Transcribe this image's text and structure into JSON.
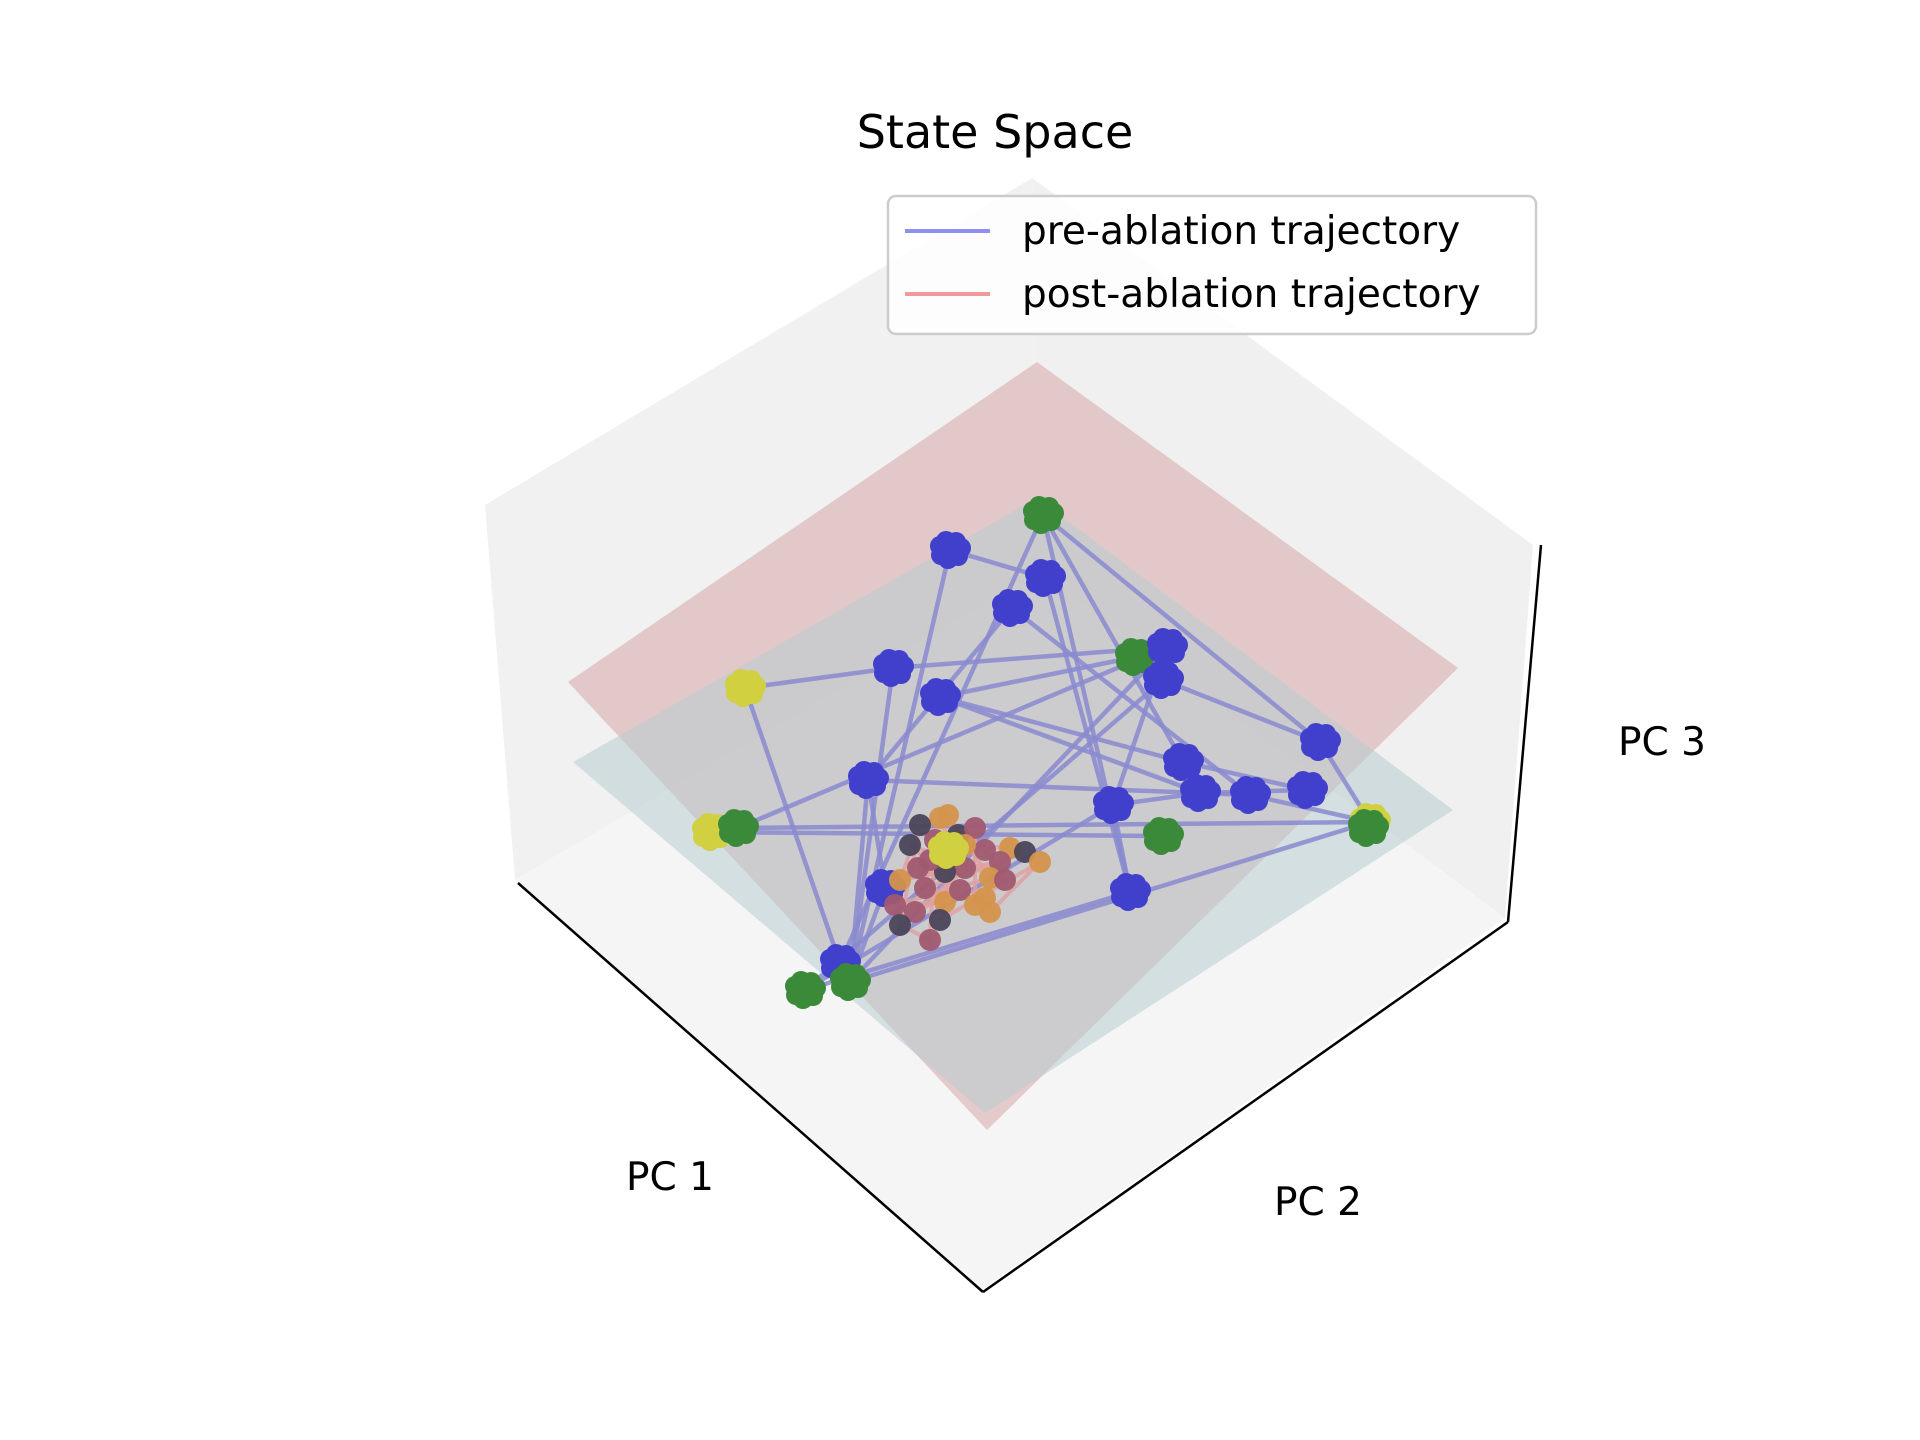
{
  "chart_data": {
    "type": "scatter",
    "projection": "3d",
    "title": "State Space",
    "axes": {
      "xlabel": "PC 1",
      "ylabel": "PC 2",
      "zlabel": "PC 3",
      "ticks_visible": false,
      "grid": false
    },
    "legend": {
      "placement": "top-right",
      "entries": [
        {
          "label": "pre-ablation trajectory",
          "color": "#8f8ff2"
        },
        {
          "label": "post-ablation trajectory",
          "color": "#f29a9a"
        }
      ]
    },
    "colors": {
      "pre_line": "#8a8ad0",
      "post_line": "#e0a0a0",
      "pre_state": "#4040cc",
      "goal_state": "#3a8a3a",
      "start_state": "#d0d040",
      "post_state_a": "#a05a70",
      "post_state_b": "#d4944c",
      "post_state_c": "#4a4458",
      "plane_pre": "#c2d2d8",
      "plane_post": "#d8aeae",
      "pane": "#f2f2f2"
    }
  }
}
